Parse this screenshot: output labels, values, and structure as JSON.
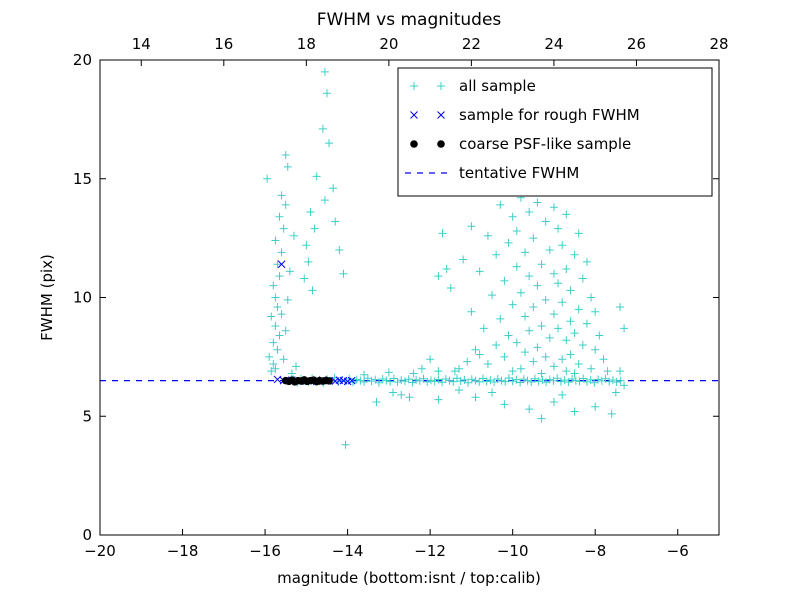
{
  "chart_data": {
    "type": "scatter",
    "title": "FWHM vs magnitudes",
    "xlabel": "magnitude (bottom:isnt / top:calib)",
    "ylabel": "FWHM (pix)",
    "xlim": [
      -20,
      -5
    ],
    "ylim": [
      0,
      20
    ],
    "x_top_lim": [
      13,
      28
    ],
    "x_ticks_bottom": [
      -20,
      -18,
      -16,
      -14,
      -12,
      -10,
      -8,
      -6
    ],
    "x_ticks_top": [
      14,
      16,
      18,
      20,
      22,
      24,
      26,
      28
    ],
    "y_ticks": [
      0,
      5,
      10,
      15,
      20
    ],
    "grid": false,
    "legend_position": "upper right",
    "frame_color": "#000000",
    "series": [
      {
        "name": "all sample",
        "type": "scatter",
        "marker": "plus",
        "color": "#3fcfc6",
        "points": [
          [
            -15.85,
            6.9
          ],
          [
            -15.8,
            7.2
          ],
          [
            -15.75,
            7.0
          ],
          [
            -15.9,
            7.5
          ],
          [
            -15.7,
            7.8
          ],
          [
            -15.8,
            8.1
          ],
          [
            -15.65,
            8.4
          ],
          [
            -15.75,
            8.8
          ],
          [
            -15.85,
            9.2
          ],
          [
            -15.7,
            9.6
          ],
          [
            -15.6,
            9.3
          ],
          [
            -15.75,
            10.0
          ],
          [
            -15.8,
            10.5
          ],
          [
            -15.65,
            10.9
          ],
          [
            -15.7,
            11.4
          ],
          [
            -15.6,
            11.9
          ],
          [
            -15.75,
            12.4
          ],
          [
            -15.55,
            12.9
          ],
          [
            -15.65,
            13.4
          ],
          [
            -15.5,
            13.9
          ],
          [
            -15.6,
            14.3
          ],
          [
            -15.3,
            12.6
          ],
          [
            -15.4,
            11.1
          ],
          [
            -15.45,
            9.9
          ],
          [
            -15.5,
            8.6
          ],
          [
            -15.55,
            7.4
          ],
          [
            -15.35,
            6.8
          ],
          [
            -15.25,
            7.1
          ],
          [
            -15.95,
            15.0
          ],
          [
            -15.5,
            16.0
          ],
          [
            -15.45,
            15.5
          ],
          [
            -14.55,
            19.5
          ],
          [
            -14.5,
            18.6
          ],
          [
            -14.6,
            17.1
          ],
          [
            -14.45,
            16.5
          ],
          [
            -14.75,
            15.1
          ],
          [
            -14.35,
            14.6
          ],
          [
            -14.55,
            14.1
          ],
          [
            -14.9,
            13.6
          ],
          [
            -14.8,
            12.9
          ],
          [
            -15.0,
            12.2
          ],
          [
            -14.95,
            11.5
          ],
          [
            -15.05,
            10.8
          ],
          [
            -14.85,
            10.3
          ],
          [
            -14.3,
            13.2
          ],
          [
            -14.2,
            12.0
          ],
          [
            -14.1,
            11.0
          ],
          [
            -14.05,
            3.8
          ],
          [
            -13.3,
            5.6
          ],
          [
            -12.9,
            6.0
          ],
          [
            -12.5,
            5.8
          ],
          [
            -13.0,
            6.85
          ],
          [
            -13.6,
            6.75
          ],
          [
            -15.4,
            6.48
          ],
          [
            -15.31,
            6.55
          ],
          [
            -15.22,
            6.42
          ],
          [
            -15.13,
            6.58
          ],
          [
            -15.04,
            6.5
          ],
          [
            -14.95,
            6.45
          ],
          [
            -14.86,
            6.6
          ],
          [
            -14.77,
            6.47
          ],
          [
            -14.68,
            6.53
          ],
          [
            -14.59,
            6.4
          ],
          [
            -14.5,
            6.56
          ],
          [
            -14.41,
            6.49
          ],
          [
            -14.32,
            6.62
          ],
          [
            -14.23,
            6.44
          ],
          [
            -14.14,
            6.52
          ],
          [
            -14.05,
            6.47
          ],
          [
            -13.96,
            6.58
          ],
          [
            -13.87,
            6.43
          ],
          [
            -13.78,
            6.55
          ],
          [
            -13.69,
            6.5
          ],
          [
            -13.6,
            6.45
          ],
          [
            -13.51,
            6.6
          ],
          [
            -13.42,
            6.48
          ],
          [
            -13.33,
            6.54
          ],
          [
            -13.24,
            6.41
          ],
          [
            -13.15,
            6.57
          ],
          [
            -13.06,
            6.5
          ],
          [
            -12.97,
            6.46
          ],
          [
            -12.88,
            6.59
          ],
          [
            -12.79,
            6.44
          ],
          [
            -12.7,
            6.52
          ],
          [
            -12.61,
            6.48
          ],
          [
            -12.52,
            6.56
          ],
          [
            -12.43,
            6.42
          ],
          [
            -12.34,
            6.53
          ],
          [
            -12.25,
            6.49
          ],
          [
            -12.16,
            6.58
          ],
          [
            -12.07,
            6.45
          ],
          [
            -11.98,
            6.51
          ],
          [
            -11.89,
            6.47
          ],
          [
            -11.8,
            6.55
          ],
          [
            -11.71,
            6.43
          ],
          [
            -11.62,
            6.57
          ],
          [
            -11.53,
            6.5
          ],
          [
            -11.44,
            6.46
          ],
          [
            -11.35,
            6.6
          ],
          [
            -11.26,
            6.48
          ],
          [
            -11.17,
            6.53
          ],
          [
            -11.08,
            6.41
          ],
          [
            -10.99,
            6.56
          ],
          [
            -10.9,
            6.5
          ],
          [
            -10.81,
            6.45
          ],
          [
            -10.72,
            6.59
          ],
          [
            -10.63,
            6.47
          ],
          [
            -10.54,
            6.52
          ],
          [
            -10.45,
            6.44
          ],
          [
            -10.36,
            6.57
          ],
          [
            -10.27,
            6.5
          ],
          [
            -10.18,
            6.46
          ],
          [
            -10.09,
            6.61
          ],
          [
            -10.0,
            6.48
          ],
          [
            -9.91,
            6.54
          ],
          [
            -9.82,
            6.42
          ],
          [
            -9.73,
            6.56
          ],
          [
            -9.64,
            6.5
          ],
          [
            -9.55,
            6.45
          ],
          [
            -9.46,
            6.58
          ],
          [
            -9.37,
            6.47
          ],
          [
            -9.28,
            6.53
          ],
          [
            -9.19,
            6.43
          ],
          [
            -9.1,
            6.55
          ],
          [
            -9.01,
            6.49
          ],
          [
            -8.92,
            6.6
          ],
          [
            -8.83,
            6.46
          ],
          [
            -8.74,
            6.52
          ],
          [
            -8.65,
            6.44
          ],
          [
            -8.56,
            6.57
          ],
          [
            -8.47,
            6.5
          ],
          [
            -8.38,
            6.47
          ],
          [
            -8.29,
            6.59
          ],
          [
            -8.2,
            6.45
          ],
          [
            -8.11,
            6.53
          ],
          [
            -8.02,
            6.41
          ],
          [
            -7.93,
            6.55
          ],
          [
            -7.84,
            6.49
          ],
          [
            -7.75,
            6.58
          ],
          [
            -7.66,
            6.46
          ],
          [
            -7.57,
            6.52
          ],
          [
            -7.48,
            6.44
          ],
          [
            -7.39,
            6.5
          ],
          [
            -12.7,
            5.9
          ],
          [
            -11.8,
            5.7
          ],
          [
            -10.9,
            5.8
          ],
          [
            -10.2,
            5.5
          ],
          [
            -9.6,
            5.3
          ],
          [
            -9.0,
            5.6
          ],
          [
            -8.5,
            5.2
          ],
          [
            -8.0,
            5.4
          ],
          [
            -7.6,
            5.1
          ],
          [
            -9.3,
            4.9
          ],
          [
            -8.8,
            5.9
          ],
          [
            -10.5,
            6.0
          ],
          [
            -11.3,
            6.1
          ],
          [
            -9.8,
            14.2
          ],
          [
            -9.4,
            14.0
          ],
          [
            -10.3,
            13.9
          ],
          [
            -9.0,
            13.8
          ],
          [
            -9.6,
            13.6
          ],
          [
            -10.0,
            13.4
          ],
          [
            -8.7,
            13.5
          ],
          [
            -11.0,
            13.0
          ],
          [
            -9.2,
            13.2
          ],
          [
            -8.9,
            12.9
          ],
          [
            -9.9,
            12.8
          ],
          [
            -10.6,
            12.6
          ],
          [
            -8.4,
            12.7
          ],
          [
            -9.5,
            12.5
          ],
          [
            -10.1,
            12.3
          ],
          [
            -8.8,
            12.2
          ],
          [
            -11.7,
            12.7
          ],
          [
            -11.6,
            11.2
          ],
          [
            -11.8,
            10.9
          ],
          [
            -9.1,
            12.0
          ],
          [
            -9.7,
            11.9
          ],
          [
            -10.4,
            11.8
          ],
          [
            -8.5,
            11.8
          ],
          [
            -11.2,
            11.6
          ],
          [
            -8.2,
            11.5
          ],
          [
            -9.3,
            11.4
          ],
          [
            -9.9,
            11.3
          ],
          [
            -8.7,
            11.2
          ],
          [
            -10.8,
            11.1
          ],
          [
            -9.0,
            11.0
          ],
          [
            -9.6,
            10.9
          ],
          [
            -8.3,
            10.8
          ],
          [
            -10.2,
            10.7
          ],
          [
            -8.9,
            10.6
          ],
          [
            -9.4,
            10.5
          ],
          [
            -11.5,
            10.4
          ],
          [
            -8.6,
            10.3
          ],
          [
            -9.8,
            10.2
          ],
          [
            -10.5,
            10.1
          ],
          [
            -8.1,
            10.0
          ],
          [
            -9.2,
            9.9
          ],
          [
            -8.8,
            9.8
          ],
          [
            -10.0,
            9.7
          ],
          [
            -9.5,
            9.6
          ],
          [
            -8.4,
            9.5
          ],
          [
            -11.0,
            9.4
          ],
          [
            -8.0,
            9.4
          ],
          [
            -9.0,
            9.3
          ],
          [
            -9.7,
            9.2
          ],
          [
            -10.3,
            9.1
          ],
          [
            -8.6,
            9.0
          ],
          [
            -8.2,
            8.9
          ],
          [
            -9.3,
            8.8
          ],
          [
            -10.7,
            8.7
          ],
          [
            -8.9,
            8.7
          ],
          [
            -9.6,
            8.6
          ],
          [
            -8.5,
            8.5
          ],
          [
            -10.1,
            8.4
          ],
          [
            -7.9,
            8.4
          ],
          [
            -9.1,
            8.3
          ],
          [
            -8.7,
            8.2
          ],
          [
            -9.9,
            8.1
          ],
          [
            -10.4,
            8.0
          ],
          [
            -8.3,
            8.0
          ],
          [
            -9.4,
            7.9
          ],
          [
            -8.0,
            7.8
          ],
          [
            -10.9,
            7.8
          ],
          [
            -9.7,
            7.7
          ],
          [
            -8.6,
            7.6
          ],
          [
            -9.2,
            7.5
          ],
          [
            -10.2,
            7.5
          ],
          [
            -8.8,
            7.4
          ],
          [
            -7.8,
            7.4
          ],
          [
            -9.5,
            7.3
          ],
          [
            -8.4,
            7.2
          ],
          [
            -10.6,
            7.2
          ],
          [
            -9.0,
            7.1
          ],
          [
            -8.1,
            7.0
          ],
          [
            -9.8,
            7.0
          ],
          [
            -8.7,
            6.9
          ],
          [
            -10.0,
            6.9
          ],
          [
            -9.3,
            6.8
          ],
          [
            -8.5,
            6.8
          ],
          [
            -7.7,
            6.9
          ],
          [
            -11.3,
            7.0
          ],
          [
            -11.1,
            7.3
          ],
          [
            -11.4,
            6.9
          ],
          [
            -10.8,
            7.6
          ],
          [
            -12.2,
            7.0
          ],
          [
            -12.0,
            7.4
          ],
          [
            -11.8,
            6.9
          ],
          [
            -12.4,
            6.8
          ],
          [
            -7.4,
            9.6
          ],
          [
            -7.3,
            8.7
          ],
          [
            -7.5,
            6.0
          ],
          [
            -7.3,
            6.3
          ],
          [
            -7.4,
            6.9
          ]
        ]
      },
      {
        "name": "sample for rough FWHM",
        "type": "scatter",
        "marker": "x",
        "color": "#0000ff",
        "points": [
          [
            -15.7,
            6.55
          ],
          [
            -15.55,
            6.5
          ],
          [
            -15.35,
            6.52
          ],
          [
            -15.15,
            6.48
          ],
          [
            -14.95,
            6.5
          ],
          [
            -14.75,
            6.47
          ],
          [
            -14.6,
            6.52
          ],
          [
            -14.45,
            6.5
          ],
          [
            -14.3,
            6.48
          ],
          [
            -14.2,
            6.52
          ],
          [
            -14.1,
            6.5
          ],
          [
            -14.0,
            6.47
          ],
          [
            -13.9,
            6.5
          ],
          [
            -15.6,
            11.4
          ]
        ]
      },
      {
        "name": "coarse PSF-like sample",
        "type": "scatter",
        "marker": "dot",
        "color": "#000000",
        "points": [
          [
            -15.5,
            6.5
          ],
          [
            -15.42,
            6.47
          ],
          [
            -15.35,
            6.52
          ],
          [
            -15.28,
            6.45
          ],
          [
            -15.2,
            6.5
          ],
          [
            -15.12,
            6.48
          ],
          [
            -15.05,
            6.53
          ],
          [
            -14.98,
            6.47
          ],
          [
            -14.9,
            6.5
          ],
          [
            -14.82,
            6.52
          ],
          [
            -14.75,
            6.46
          ],
          [
            -14.68,
            6.5
          ],
          [
            -14.6,
            6.48
          ],
          [
            -14.52,
            6.51
          ],
          [
            -14.45,
            6.49
          ]
        ]
      },
      {
        "name": "tentative FWHM",
        "type": "hline",
        "linestyle": "dashed",
        "color": "#0000ff",
        "y": 6.5
      }
    ]
  }
}
